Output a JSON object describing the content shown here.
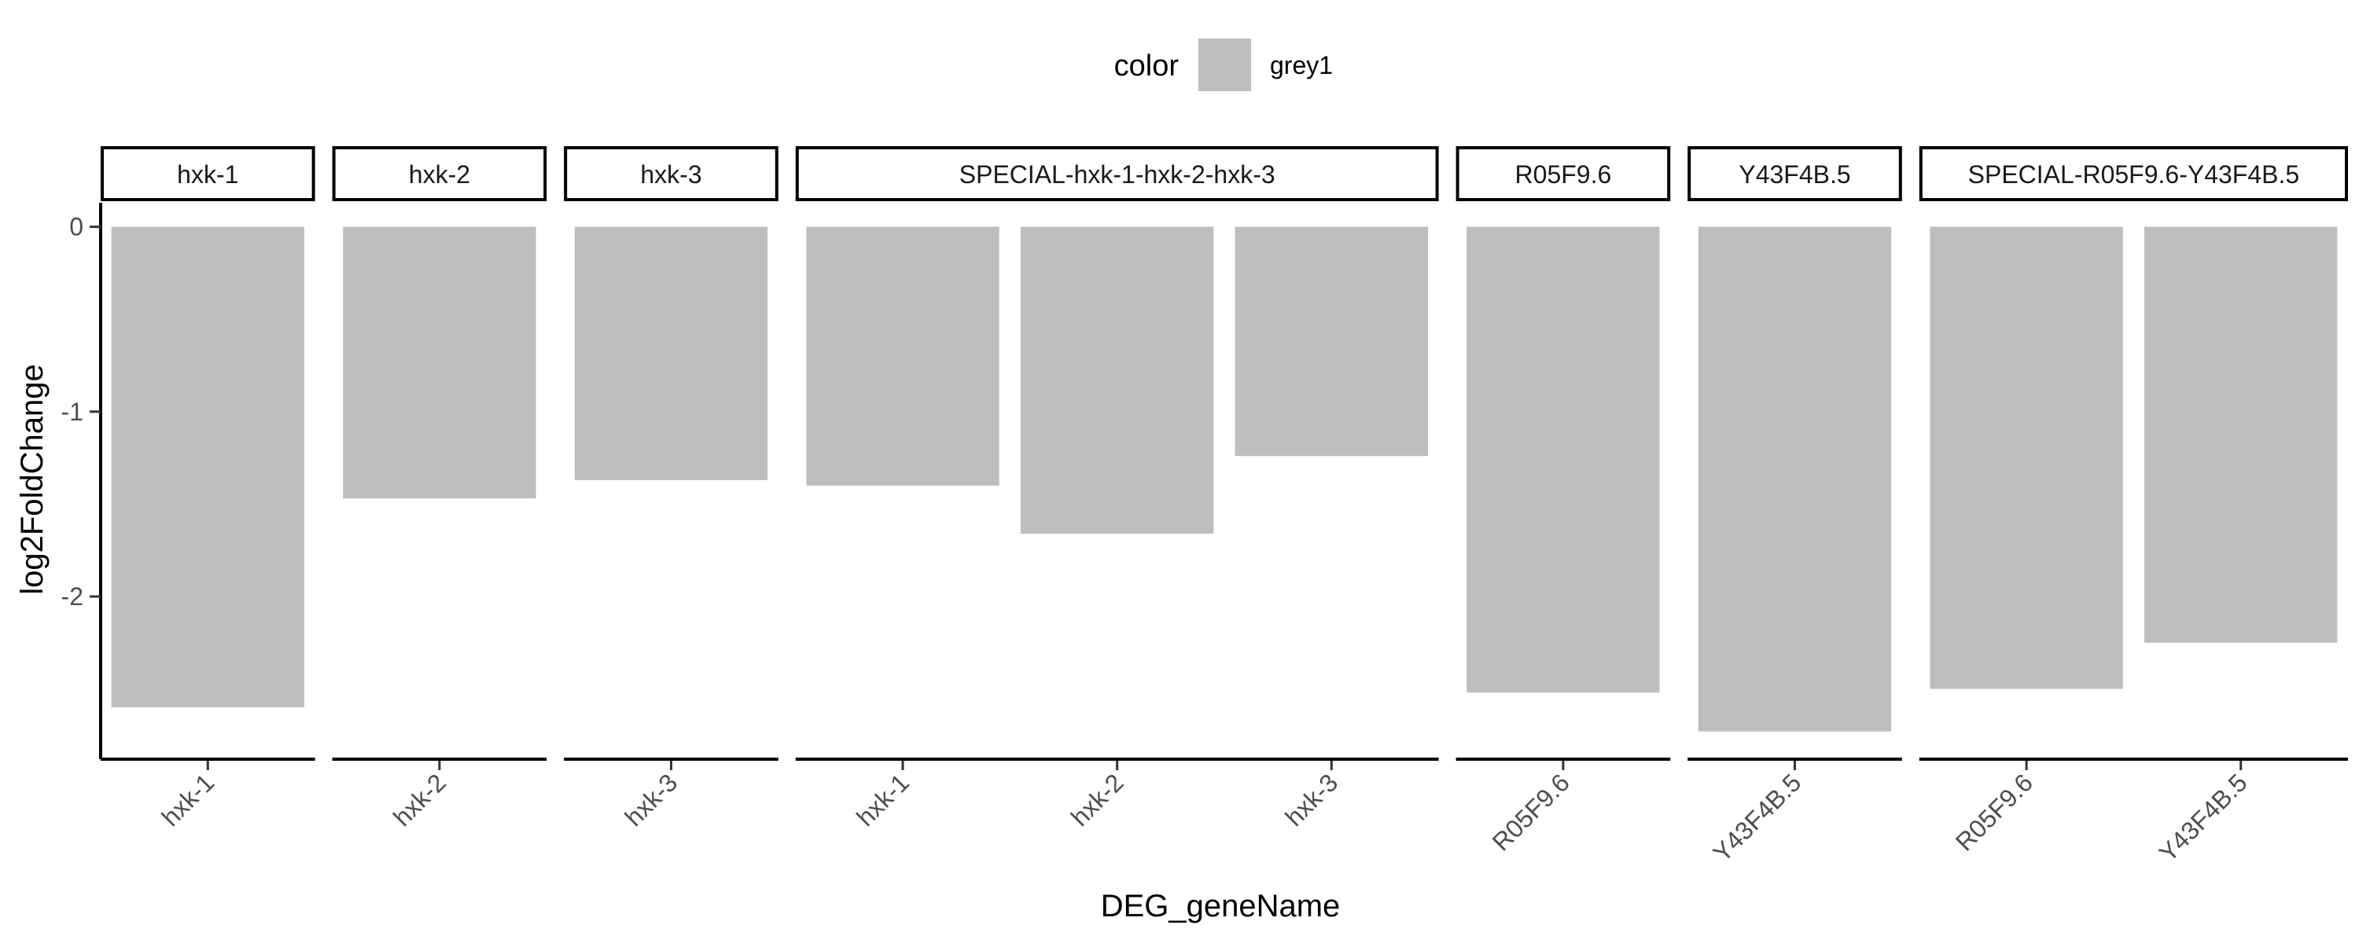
{
  "chart_data": {
    "type": "bar",
    "xlabel": "DEG_geneName",
    "ylabel": "log2FoldChange",
    "ylim": [
      -2.88,
      0.13
    ],
    "y_ticks": [
      0,
      -1,
      -2
    ],
    "grid": false,
    "legend": {
      "position": "top",
      "title": "color",
      "entries": [
        {
          "label": "grey1",
          "color": "#bebebe"
        }
      ]
    },
    "bar_color": "#bebebe",
    "facets": [
      {
        "label": "hxk-1",
        "categories": [
          "hxk-1"
        ],
        "values": [
          -2.6
        ]
      },
      {
        "label": "hxk-2",
        "categories": [
          "hxk-2"
        ],
        "values": [
          -1.47
        ]
      },
      {
        "label": "hxk-3",
        "categories": [
          "hxk-3"
        ],
        "values": [
          -1.37
        ]
      },
      {
        "label": "SPECIAL-hxk-1-hxk-2-hxk-3",
        "categories": [
          "hxk-1",
          "hxk-2",
          "hxk-3"
        ],
        "values": [
          -1.4,
          -1.66,
          -1.24
        ]
      },
      {
        "label": "R05F9.6",
        "categories": [
          "R05F9.6"
        ],
        "values": [
          -2.52
        ]
      },
      {
        "label": "Y43F4B.5",
        "categories": [
          "Y43F4B.5"
        ],
        "values": [
          -2.73
        ]
      },
      {
        "label": "SPECIAL-R05F9.6-Y43F4B.5",
        "categories": [
          "R05F9.6",
          "Y43F4B.5"
        ],
        "values": [
          -2.5,
          -2.25
        ]
      }
    ]
  }
}
